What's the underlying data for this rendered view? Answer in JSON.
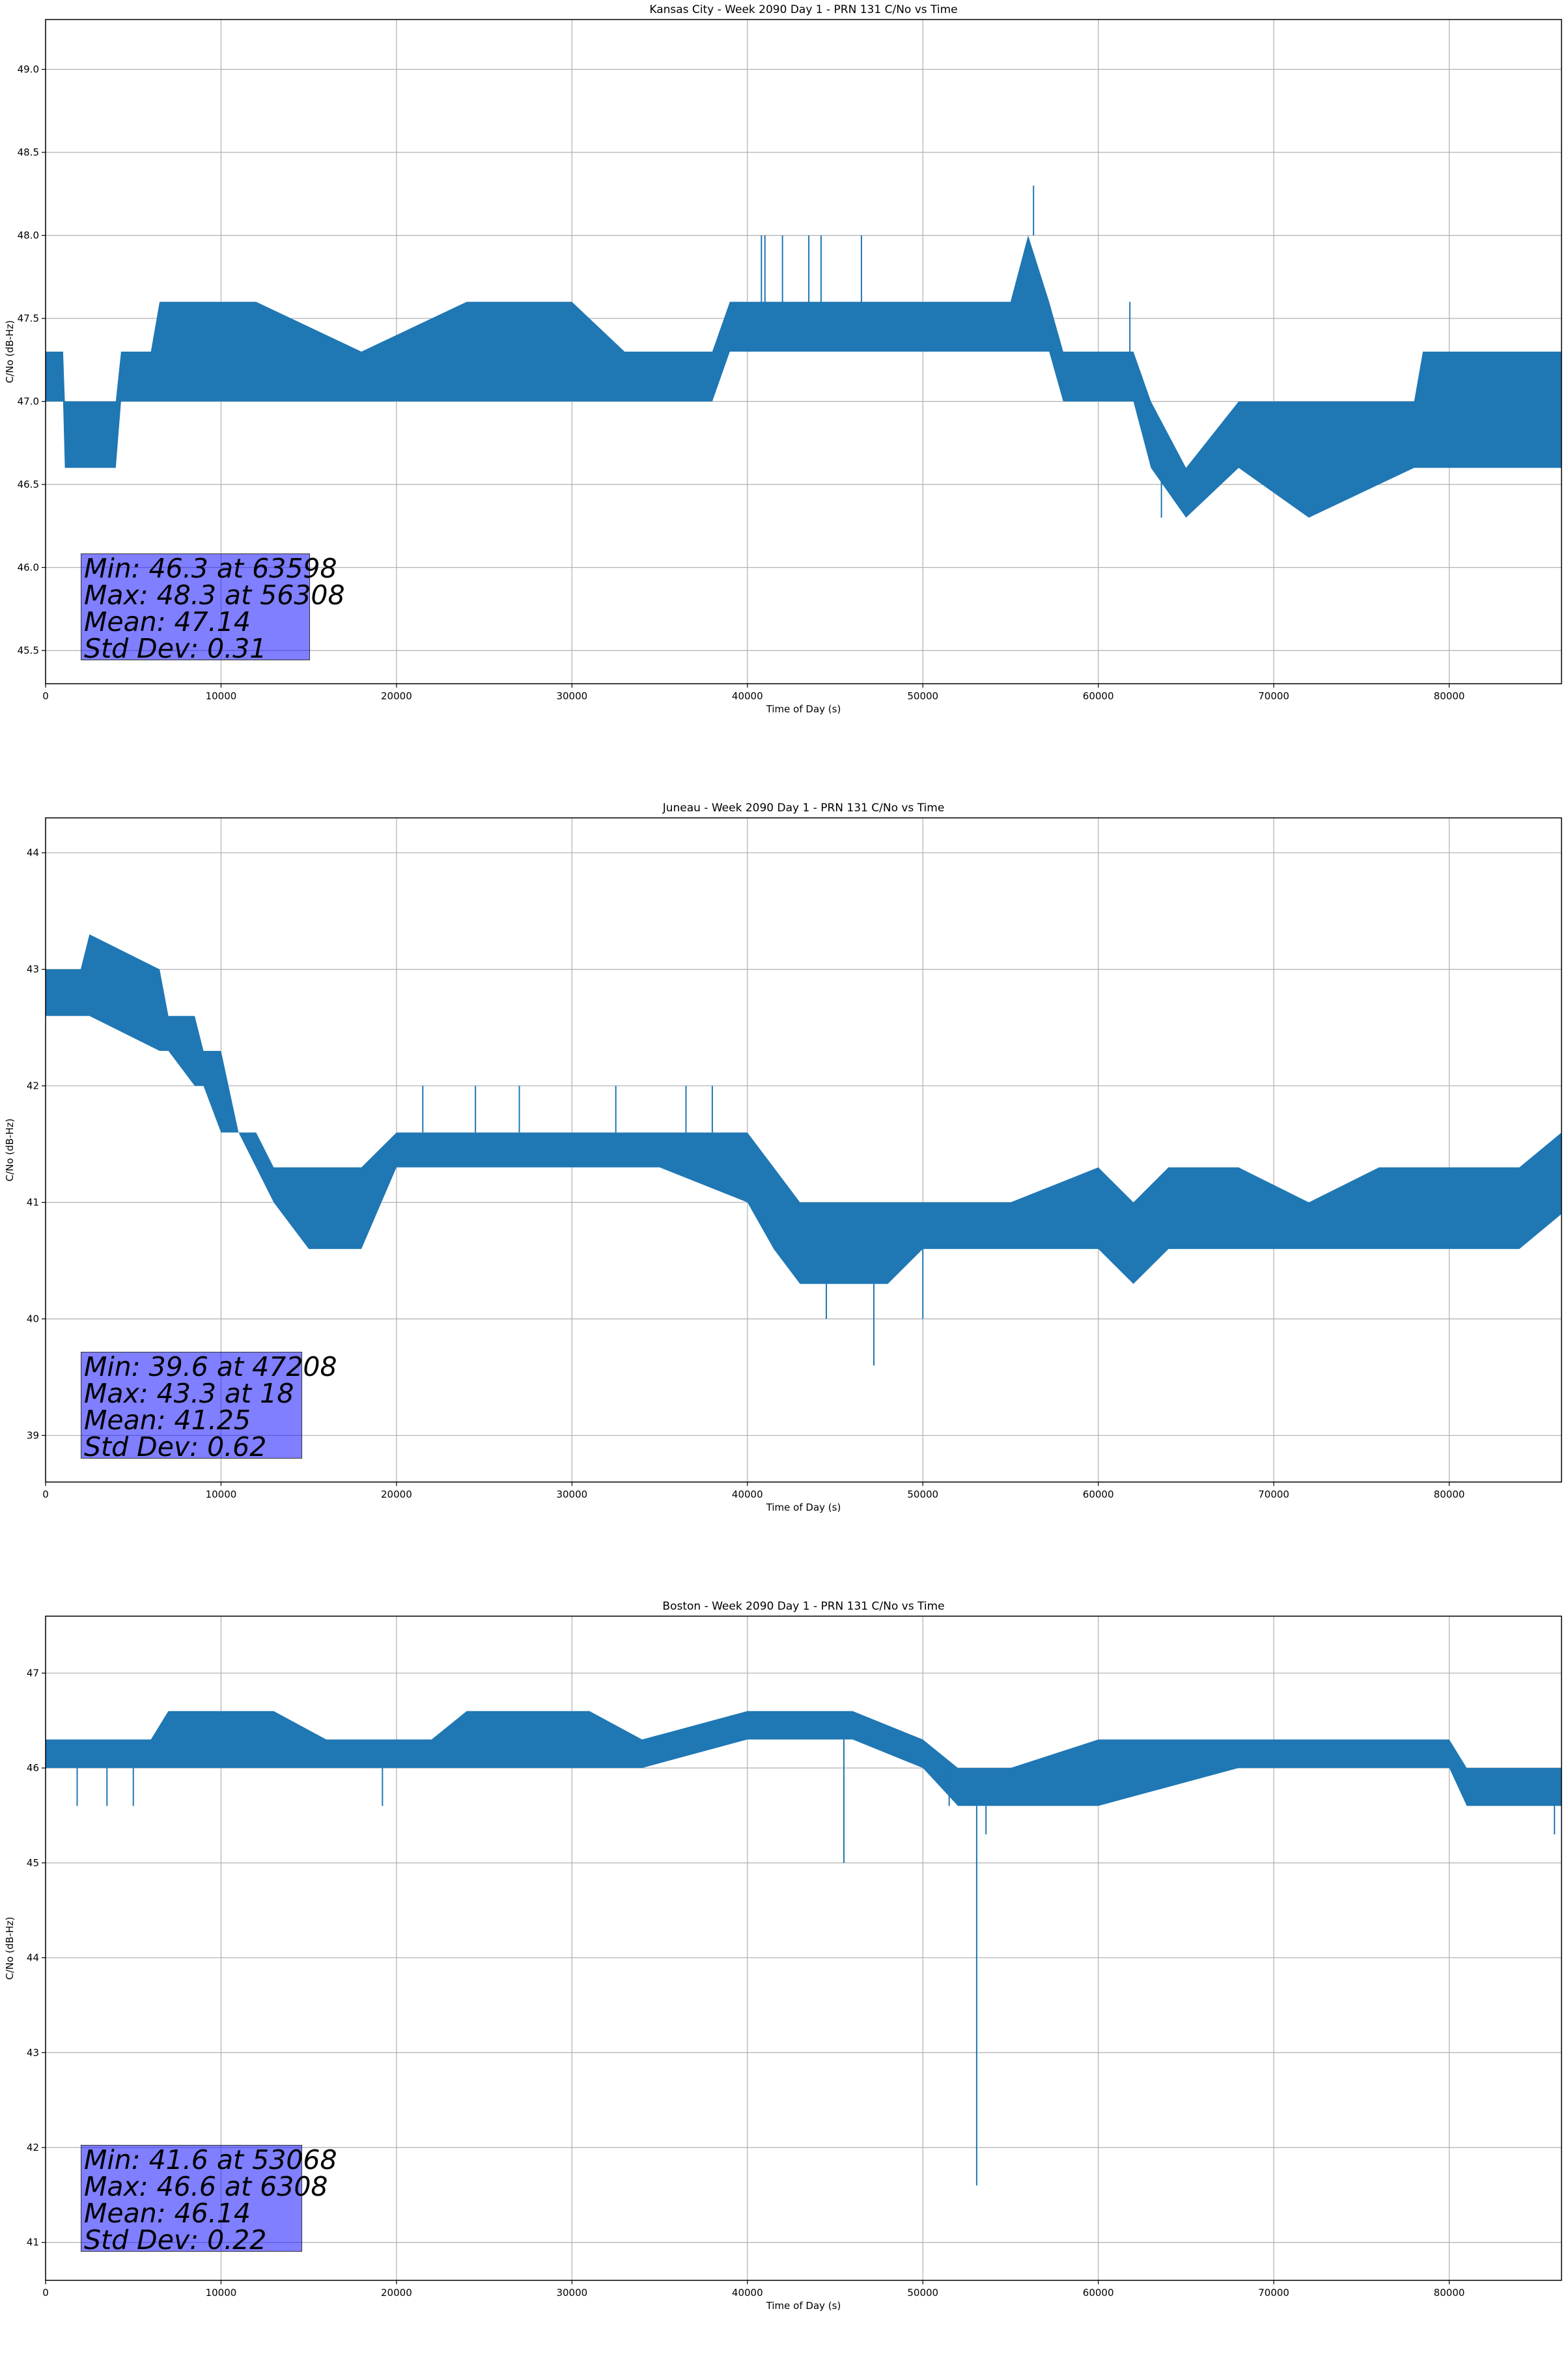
{
  "chart_data": [
    {
      "type": "line",
      "title": "Kansas City - Week 2090 Day 1 - PRN 131 C/No vs Time",
      "xlabel": "Time of Day (s)",
      "ylabel": "C/No (dB-Hz)",
      "xlim": [
        0,
        86400
      ],
      "ylim": [
        45.3,
        49.3
      ],
      "xticks": [
        0,
        10000,
        20000,
        30000,
        40000,
        50000,
        60000,
        70000,
        80000
      ],
      "yticks": [
        "45.5",
        "46.0",
        "46.5",
        "47.0",
        "47.5",
        "48.0",
        "48.5",
        "49.0"
      ],
      "grid": true,
      "color": "#1f77b4",
      "series": [
        {
          "name": "C/No",
          "x": [
            0,
            1000,
            1100,
            4000,
            4300,
            6000,
            6500,
            12000,
            18000,
            24000,
            30000,
            33000,
            38000,
            39000,
            44000,
            50000,
            55000,
            56000,
            57200,
            58000,
            62000,
            63000,
            65000,
            68000,
            72000,
            78000,
            78500,
            86400
          ],
          "low": [
            47.0,
            47.0,
            46.6,
            46.6,
            47.0,
            47.0,
            47.0,
            47.0,
            47.0,
            47.0,
            47.0,
            47.0,
            47.0,
            47.3,
            47.3,
            47.3,
            47.3,
            47.3,
            47.3,
            47.0,
            47.0,
            46.6,
            46.3,
            46.6,
            46.3,
            46.6,
            46.6,
            46.6
          ],
          "high": [
            47.3,
            47.3,
            47.0,
            47.0,
            47.3,
            47.3,
            47.6,
            47.6,
            47.3,
            47.6,
            47.6,
            47.3,
            47.3,
            47.6,
            47.6,
            47.6,
            47.6,
            48.0,
            47.6,
            47.3,
            47.3,
            47.0,
            46.6,
            47.0,
            47.0,
            47.0,
            47.3,
            47.3
          ]
        }
      ],
      "spikes": [
        {
          "x": 40800,
          "y": 48.0
        },
        {
          "x": 41000,
          "y": 48.0
        },
        {
          "x": 42000,
          "y": 48.0
        },
        {
          "x": 43500,
          "y": 48.0
        },
        {
          "x": 44200,
          "y": 48.0
        },
        {
          "x": 46500,
          "y": 48.0
        },
        {
          "x": 56308,
          "y": 48.3
        },
        {
          "x": 61800,
          "y": 47.6
        },
        {
          "x": 63598,
          "y": 46.3
        }
      ],
      "stats": [
        "Min: 46.3 at 63598",
        "Max: 48.3 at 56308",
        "Mean: 47.14",
        "Std Dev: 0.31"
      ]
    },
    {
      "type": "line",
      "title": "Juneau - Week 2090 Day 1 - PRN 131 C/No vs Time",
      "xlabel": "Time of Day (s)",
      "ylabel": "C/No (dB-Hz)",
      "xlim": [
        0,
        86400
      ],
      "ylim": [
        38.6,
        44.3
      ],
      "xticks": [
        0,
        10000,
        20000,
        30000,
        40000,
        50000,
        60000,
        70000,
        80000
      ],
      "yticks": [
        "39",
        "40",
        "41",
        "42",
        "43",
        "44"
      ],
      "grid": true,
      "color": "#1f77b4",
      "series": [
        {
          "name": "C/No",
          "x": [
            0,
            2000,
            2500,
            6500,
            7000,
            8500,
            9000,
            10000,
            11000,
            12000,
            13000,
            15000,
            18000,
            20000,
            25000,
            30000,
            35000,
            40000,
            41500,
            43000,
            48000,
            50000,
            55000,
            60000,
            62000,
            64000,
            68000,
            72000,
            76000,
            80000,
            84000,
            86400
          ],
          "low": [
            42.6,
            42.6,
            42.6,
            42.3,
            42.3,
            42.0,
            42.0,
            41.6,
            41.6,
            41.3,
            41.0,
            40.6,
            40.6,
            41.3,
            41.3,
            41.3,
            41.3,
            41.0,
            40.6,
            40.3,
            40.3,
            40.6,
            40.6,
            40.6,
            40.3,
            40.6,
            40.6,
            40.6,
            40.6,
            40.6,
            40.6,
            40.9
          ],
          "high": [
            43.0,
            43.0,
            43.3,
            43.0,
            42.6,
            42.6,
            42.3,
            42.3,
            41.6,
            41.6,
            41.3,
            41.3,
            41.3,
            41.6,
            41.6,
            41.6,
            41.6,
            41.6,
            41.3,
            41.0,
            41.0,
            41.0,
            41.0,
            41.3,
            41.0,
            41.3,
            41.3,
            41.0,
            41.3,
            41.3,
            41.3,
            41.6
          ]
        }
      ],
      "spikes": [
        {
          "x": 21500,
          "y": 42.0
        },
        {
          "x": 24500,
          "y": 42.0
        },
        {
          "x": 27000,
          "y": 42.0
        },
        {
          "x": 32500,
          "y": 42.0
        },
        {
          "x": 36500,
          "y": 42.0
        },
        {
          "x": 38000,
          "y": 42.0
        },
        {
          "x": 47208,
          "y": 39.6
        },
        {
          "x": 50000,
          "y": 40.0
        },
        {
          "x": 44500,
          "y": 40.0
        }
      ],
      "stats": [
        "Min: 39.6 at 47208",
        "Max: 43.3 at 18",
        "Mean: 41.25",
        "Std Dev: 0.62"
      ]
    },
    {
      "type": "line",
      "title": "Boston - Week 2090 Day 1 - PRN 131 C/No vs Time",
      "xlabel": "Time of Day (s)",
      "ylabel": "C/No (dB-Hz)",
      "xlim": [
        0,
        86400
      ],
      "ylim": [
        40.6,
        47.6
      ],
      "xticks": [
        0,
        10000,
        20000,
        30000,
        40000,
        50000,
        60000,
        70000,
        80000
      ],
      "yticks": [
        "41",
        "42",
        "43",
        "44",
        "45",
        "46",
        "47"
      ],
      "grid": true,
      "color": "#1f77b4",
      "series": [
        {
          "name": "C/No",
          "x": [
            0,
            2000,
            6000,
            7000,
            13000,
            16000,
            22000,
            24000,
            31000,
            34000,
            40000,
            46000,
            50000,
            52000,
            55000,
            60000,
            68000,
            80000,
            81000,
            86400
          ],
          "low": [
            46.0,
            46.0,
            46.0,
            46.0,
            46.0,
            46.0,
            46.0,
            46.0,
            46.0,
            46.0,
            46.3,
            46.3,
            46.0,
            45.6,
            45.6,
            45.6,
            46.0,
            46.0,
            45.6,
            45.6
          ],
          "high": [
            46.3,
            46.3,
            46.3,
            46.6,
            46.6,
            46.3,
            46.3,
            46.6,
            46.6,
            46.3,
            46.6,
            46.6,
            46.3,
            46.0,
            46.0,
            46.3,
            46.3,
            46.3,
            46.0,
            46.0
          ]
        }
      ],
      "spikes": [
        {
          "x": 1800,
          "y": 45.6
        },
        {
          "x": 3500,
          "y": 45.6
        },
        {
          "x": 5000,
          "y": 45.6
        },
        {
          "x": 19200,
          "y": 45.6
        },
        {
          "x": 45500,
          "y": 45.0
        },
        {
          "x": 53068,
          "y": 41.6
        },
        {
          "x": 53600,
          "y": 45.3
        },
        {
          "x": 86000,
          "y": 45.3
        },
        {
          "x": 51500,
          "y": 45.6
        }
      ],
      "stats": [
        "Min: 41.6 at 53068",
        "Max: 46.6 at 6308",
        "Mean: 46.14",
        "Std Dev: 0.22"
      ]
    }
  ]
}
